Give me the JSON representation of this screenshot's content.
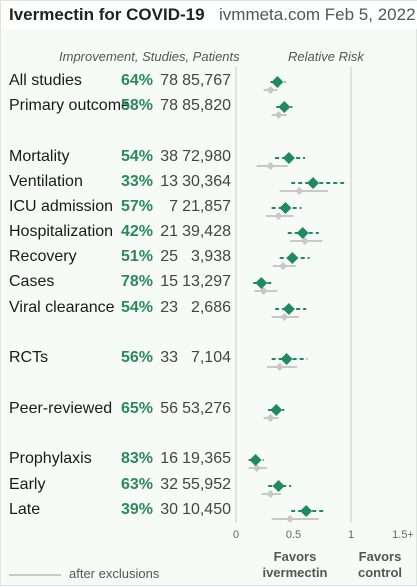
{
  "header": {
    "title": "Ivermectin for COVID-19",
    "site": "ivmmeta.com Feb 5, 2022"
  },
  "columns": {
    "left": "Improvement, Studies, Patients",
    "right": "Relative Risk"
  },
  "legend": {
    "after_exclusions": "after exclusions"
  },
  "favors": {
    "left": "Favors\nivermectin",
    "right": "Favors\ncontrol"
  },
  "colors": {
    "marker": "#1f8a60",
    "ci": "#1f8a60",
    "excl": "#c8c8c8",
    "pct": "#2a8a5a"
  },
  "chart_data": {
    "type": "forest",
    "xlabel": "",
    "x_ticks": [
      "0",
      "0.5",
      "1",
      "1.5+"
    ],
    "xlim": [
      0,
      1.5
    ],
    "rows": [
      {
        "label": "All studies",
        "improvement": "64%",
        "studies": "78",
        "patients": "85,767",
        "rr": 0.36,
        "ci": [
          0.3,
          0.43
        ],
        "excl_rr": 0.3,
        "excl_ci": [
          0.24,
          0.36
        ]
      },
      {
        "label": "Primary outcome",
        "improvement": "58%",
        "studies": "78",
        "patients": "85,820",
        "rr": 0.42,
        "ci": [
          0.35,
          0.49
        ],
        "excl_rr": 0.37,
        "excl_ci": [
          0.31,
          0.44
        ]
      },
      {
        "label": "Mortality",
        "improvement": "54%",
        "studies": "38",
        "patients": "72,980",
        "rr": 0.46,
        "ci": [
          0.34,
          0.6
        ],
        "excl_rr": 0.3,
        "excl_ci": [
          0.18,
          0.45
        ]
      },
      {
        "label": "Ventilation",
        "improvement": "33%",
        "studies": "13",
        "patients": "30,364",
        "rr": 0.67,
        "ci": [
          0.48,
          0.94
        ],
        "excl_rr": 0.55,
        "excl_ci": [
          0.38,
          0.8
        ]
      },
      {
        "label": "ICU admission",
        "improvement": "57%",
        "studies": "7",
        "patients": "21,857",
        "rr": 0.43,
        "ci": [
          0.31,
          0.57
        ],
        "excl_rr": 0.37,
        "excl_ci": [
          0.26,
          0.5
        ]
      },
      {
        "label": "Hospitalization",
        "improvement": "42%",
        "studies": "21",
        "patients": "39,428",
        "rr": 0.58,
        "ci": [
          0.45,
          0.72
        ],
        "excl_rr": 0.6,
        "excl_ci": [
          0.47,
          0.75
        ]
      },
      {
        "label": "Recovery",
        "improvement": "51%",
        "studies": "25",
        "patients": "3,938",
        "rr": 0.49,
        "ci": [
          0.38,
          0.64
        ],
        "excl_rr": 0.41,
        "excl_ci": [
          0.32,
          0.52
        ]
      },
      {
        "label": "Cases",
        "improvement": "78%",
        "studies": "15",
        "patients": "13,297",
        "rr": 0.22,
        "ci": [
          0.15,
          0.31
        ],
        "excl_rr": 0.24,
        "excl_ci": [
          0.16,
          0.36
        ]
      },
      {
        "label": "Viral clearance",
        "improvement": "54%",
        "studies": "23",
        "patients": "2,686",
        "rr": 0.46,
        "ci": [
          0.34,
          0.61
        ],
        "excl_rr": 0.42,
        "excl_ci": [
          0.31,
          0.55
        ]
      },
      {
        "label": "RCTs",
        "improvement": "56%",
        "studies": "33",
        "patients": "7,104",
        "rr": 0.44,
        "ci": [
          0.31,
          0.62
        ],
        "excl_rr": 0.38,
        "excl_ci": [
          0.27,
          0.53
        ]
      },
      {
        "label": "Peer-reviewed",
        "improvement": "65%",
        "studies": "56",
        "patients": "53,276",
        "rr": 0.35,
        "ci": [
          0.28,
          0.42
        ],
        "excl_rr": 0.3,
        "excl_ci": [
          0.24,
          0.37
        ]
      },
      {
        "label": "Prophylaxis",
        "improvement": "83%",
        "studies": "16",
        "patients": "19,365",
        "rr": 0.17,
        "ci": [
          0.11,
          0.24
        ],
        "excl_rr": 0.18,
        "excl_ci": [
          0.11,
          0.27
        ]
      },
      {
        "label": "Early",
        "improvement": "63%",
        "studies": "32",
        "patients": "55,952",
        "rr": 0.37,
        "ci": [
          0.28,
          0.48
        ],
        "excl_rr": 0.3,
        "excl_ci": [
          0.22,
          0.39
        ]
      },
      {
        "label": "Late",
        "improvement": "39%",
        "studies": "30",
        "patients": "10,450",
        "rr": 0.61,
        "ci": [
          0.48,
          0.77
        ],
        "excl_rr": 0.47,
        "excl_ci": [
          0.31,
          0.72
        ]
      }
    ]
  }
}
